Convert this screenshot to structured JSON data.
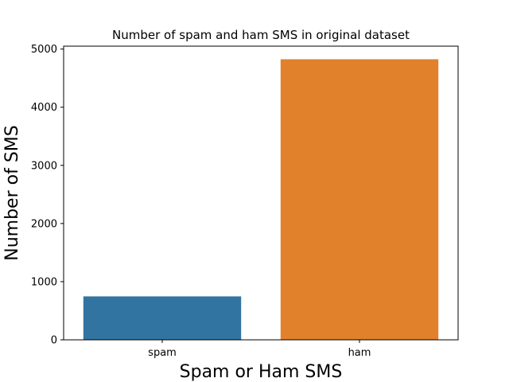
{
  "chart_data": {
    "type": "bar",
    "title": "Number of spam and ham SMS in original dataset",
    "xlabel": "Spam or Ham SMS",
    "ylabel": "Number of SMS",
    "categories": [
      "spam",
      "ham"
    ],
    "values": [
      747,
      4825
    ],
    "colors": [
      "#3274a1",
      "#e1812c"
    ],
    "ylim": [
      0,
      5050
    ],
    "yticks": [
      0,
      1000,
      2000,
      3000,
      4000,
      5000
    ],
    "grid": false,
    "legend": "none"
  }
}
